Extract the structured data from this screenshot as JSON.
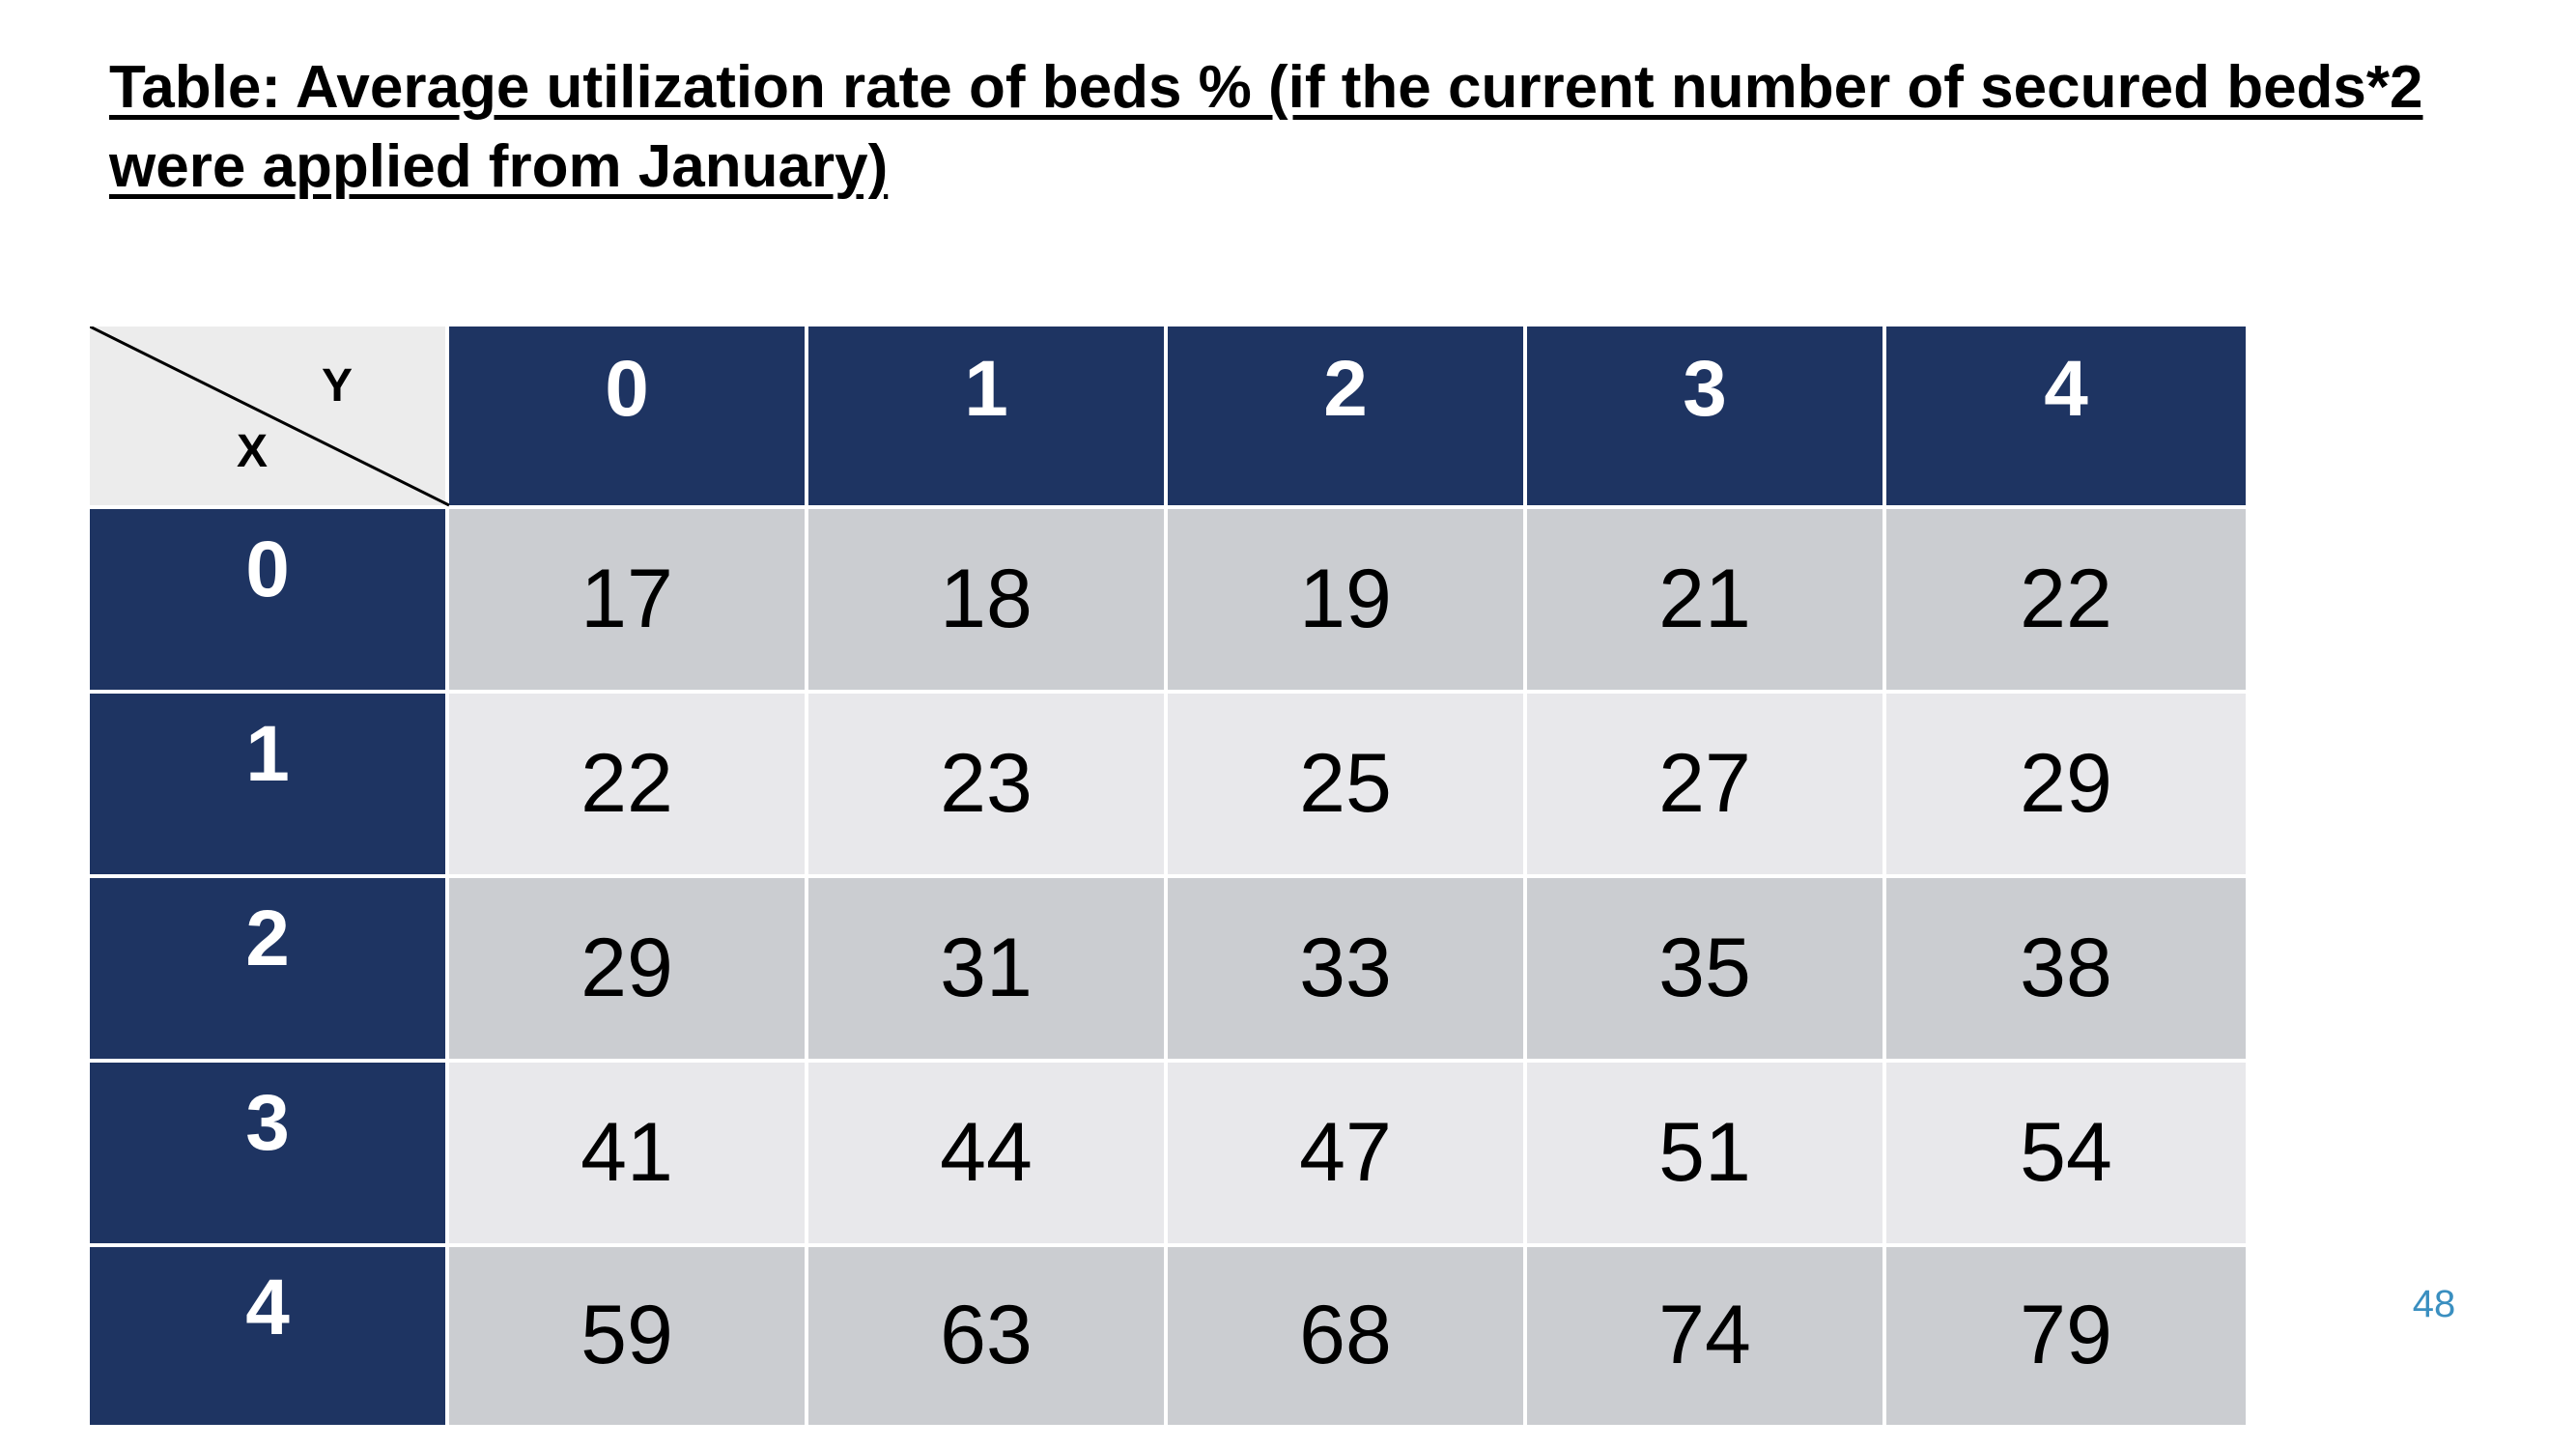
{
  "title": "Table: Average utilization rate of beds % (if the current number of secured beds*2 were applied from January)",
  "axis_labels": {
    "x": "X",
    "y": "Y"
  },
  "column_headers": [
    "0",
    "1",
    "2",
    "3",
    "4"
  ],
  "rows": [
    {
      "label": "0",
      "values": [
        "17",
        "18",
        "19",
        "21",
        "22"
      ]
    },
    {
      "label": "1",
      "values": [
        "22",
        "23",
        "25",
        "27",
        "29"
      ]
    },
    {
      "label": "2",
      "values": [
        "29",
        "31",
        "33",
        "35",
        "38"
      ]
    },
    {
      "label": "3",
      "values": [
        "41",
        "44",
        "47",
        "51",
        "54"
      ]
    },
    {
      "label": "4",
      "values": [
        "59",
        "63",
        "68",
        "74",
        "79"
      ]
    }
  ],
  "page_number": "48",
  "colors": {
    "header_bg": "#1e3462",
    "row_dark_bg": "#cbcdd1",
    "row_light_bg": "#e8e8eb",
    "corner_bg": "#ececec",
    "page_number": "#3a8fc0"
  }
}
